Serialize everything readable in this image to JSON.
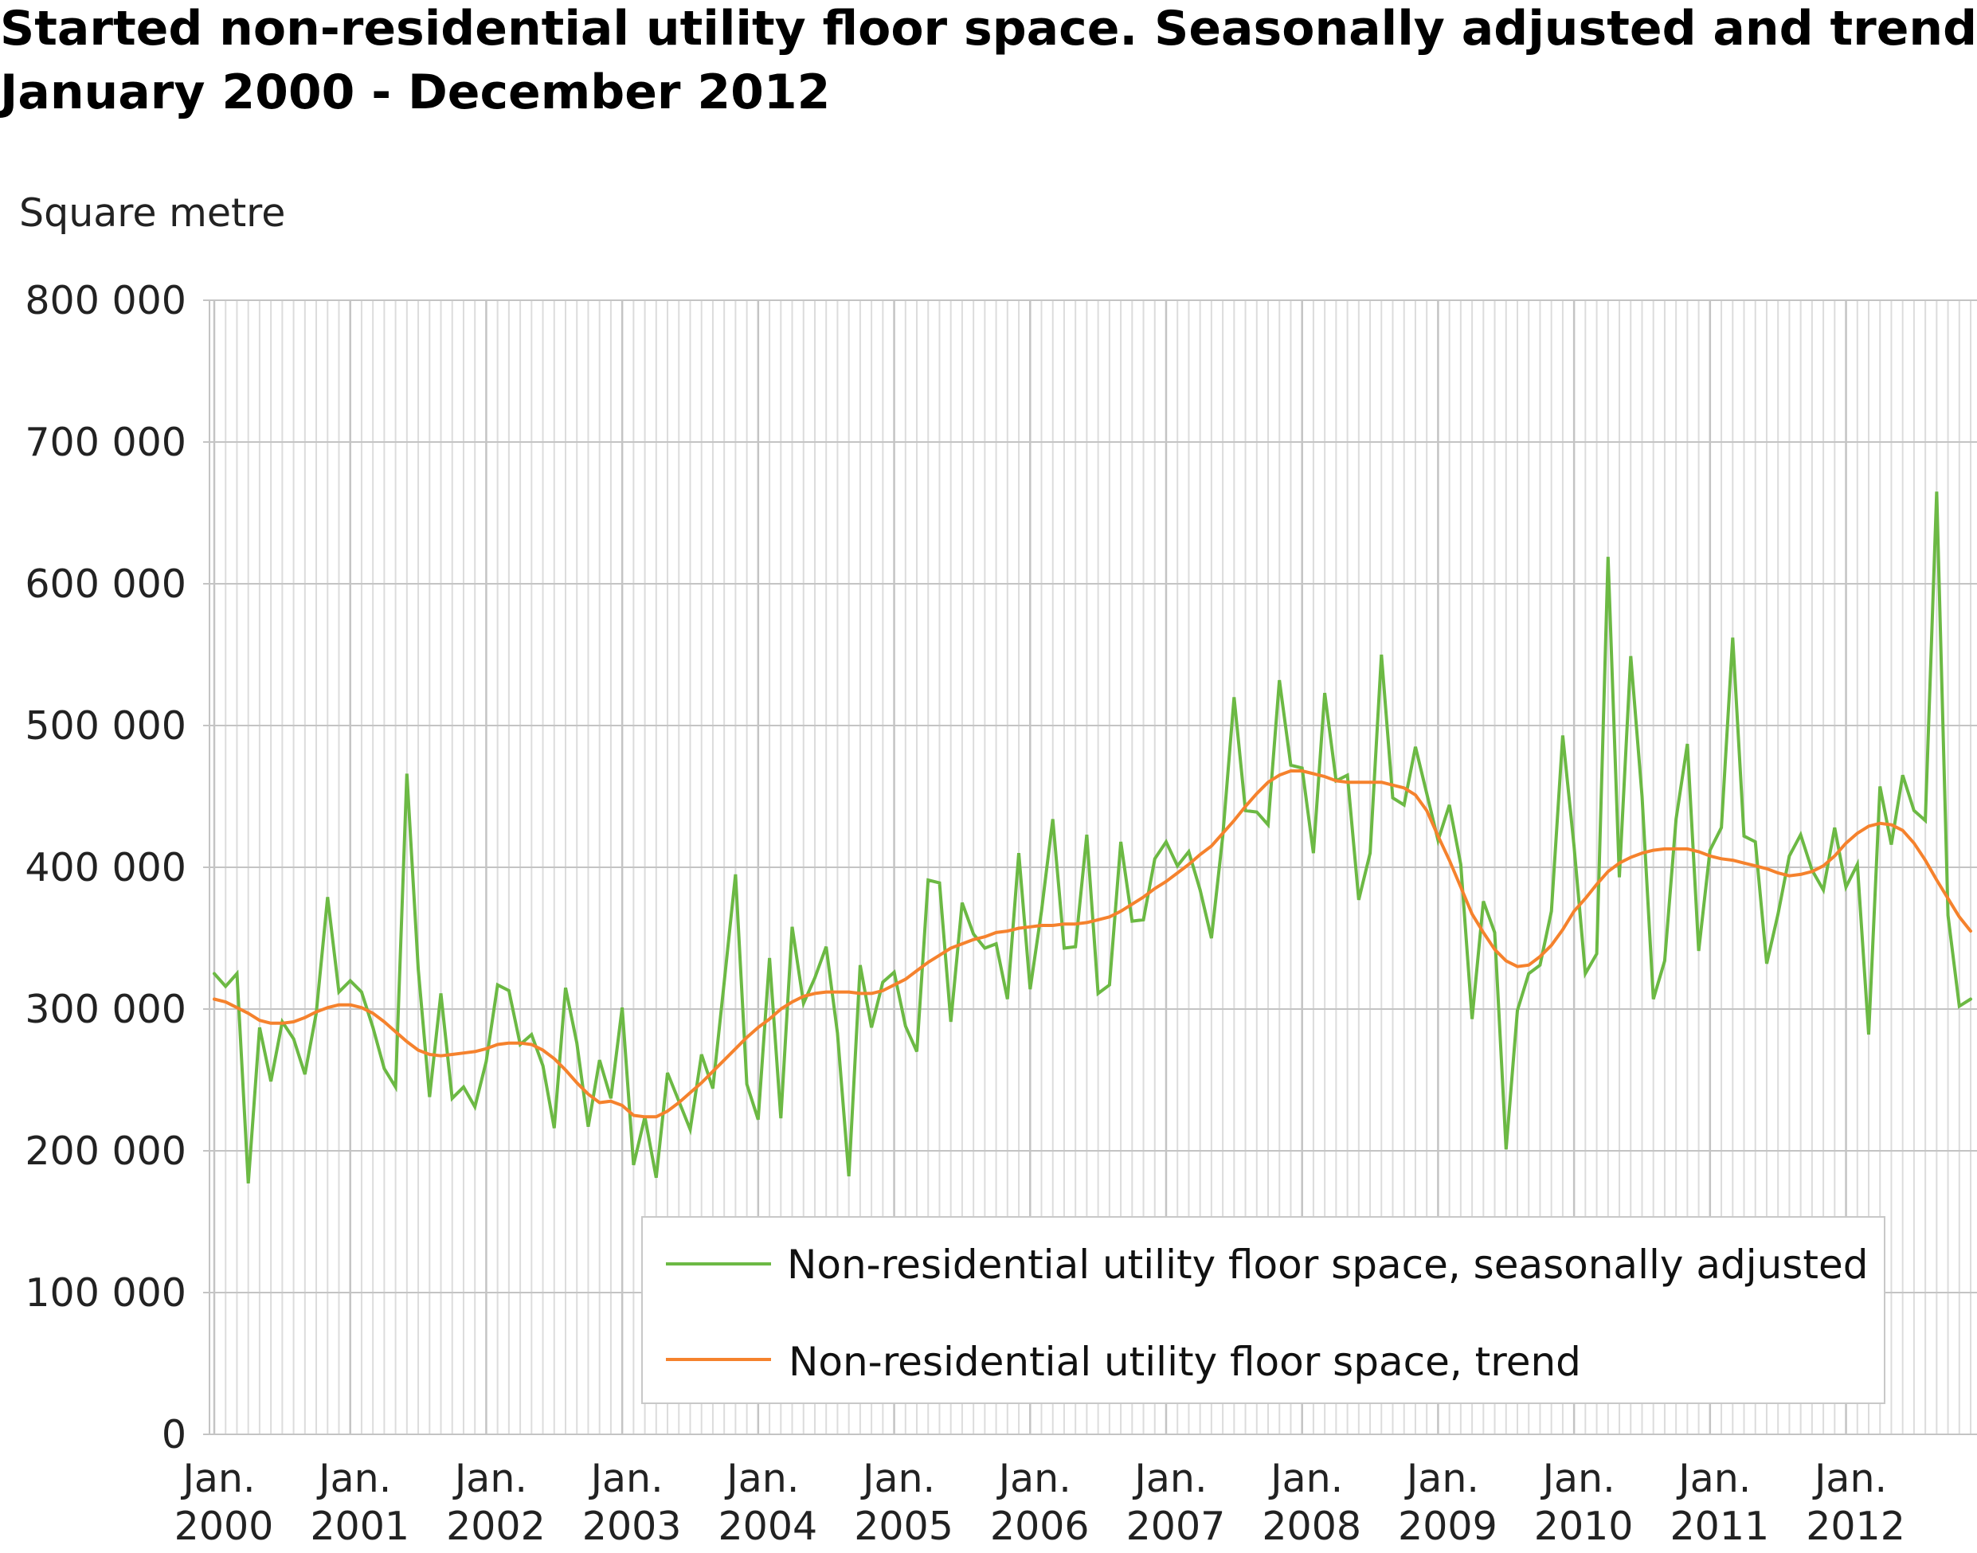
{
  "title_lines": [
    "Started non-residential utility floor space. Seasonally adjusted and trend.",
    "January 2000 - December 2012"
  ],
  "chart_data": {
    "type": "line",
    "title": "Started non-residential utility floor space. Seasonally adjusted and trend. January 2000 - December 2012",
    "ylabel": "Square metre",
    "xlabel": "",
    "ylim": [
      0,
      800000
    ],
    "yticks": [
      "0",
      "100 000",
      "200 000",
      "300 000",
      "400 000",
      "500 000",
      "600 000",
      "700 000",
      "800 000"
    ],
    "xticks": [
      [
        "Jan.",
        "2000"
      ],
      [
        "Jan.",
        "2001"
      ],
      [
        "Jan.",
        "2002"
      ],
      [
        "Jan.",
        "2003"
      ],
      [
        "Jan.",
        "2004"
      ],
      [
        "Jan.",
        "2005"
      ],
      [
        "Jan.",
        "2006"
      ],
      [
        "Jan.",
        "2007"
      ],
      [
        "Jan.",
        "2008"
      ],
      [
        "Jan.",
        "2009"
      ],
      [
        "Jan.",
        "2010"
      ],
      [
        "Jan.",
        "2011"
      ],
      [
        "Jan.",
        "2012"
      ]
    ],
    "x_start": "2000-01",
    "x_end": "2012-12",
    "frequency": "monthly",
    "grid": true,
    "legend_position": "bottom-right inside plot",
    "series": [
      {
        "name": "Non-residential utility floor space, seasonally adjusted",
        "color": "#6cb944",
        "values": [
          325000,
          316000,
          325000,
          177000,
          287000,
          249000,
          291000,
          279000,
          254000,
          297000,
          379000,
          312000,
          320000,
          312000,
          287000,
          258000,
          245000,
          466000,
          328000,
          238000,
          311000,
          237000,
          245000,
          231000,
          263000,
          317000,
          313000,
          275000,
          282000,
          260000,
          216000,
          315000,
          276000,
          217000,
          264000,
          237000,
          301000,
          190000,
          224000,
          181000,
          255000,
          235000,
          215000,
          268000,
          244000,
          319000,
          395000,
          247000,
          222000,
          336000,
          223000,
          358000,
          304000,
          322000,
          344000,
          283000,
          182000,
          331000,
          287000,
          319000,
          326000,
          288000,
          270000,
          391000,
          389000,
          291000,
          375000,
          353000,
          343000,
          346000,
          307000,
          410000,
          314000,
          369000,
          434000,
          343000,
          344000,
          423000,
          311000,
          317000,
          418000,
          362000,
          363000,
          406000,
          418000,
          401000,
          411000,
          384000,
          350000,
          422000,
          520000,
          440000,
          439000,
          430000,
          532000,
          472000,
          470000,
          410000,
          523000,
          461000,
          465000,
          377000,
          410000,
          550000,
          449000,
          444000,
          485000,
          452000,
          419000,
          444000,
          402000,
          293000,
          376000,
          354000,
          201000,
          299000,
          325000,
          331000,
          369000,
          493000,
          415000,
          325000,
          339000,
          619000,
          393000,
          549000,
          450000,
          307000,
          334000,
          434000,
          487000,
          341000,
          412000,
          428000,
          562000,
          422000,
          418000,
          332000,
          367000,
          408000,
          423000,
          398000,
          384000,
          428000,
          386000,
          402000,
          282000,
          457000,
          416000,
          465000,
          440000,
          433000,
          665000,
          366000,
          302000,
          307000
        ]
      },
      {
        "name": "Non-residential utility floor space, trend",
        "color": "#f5822d",
        "values": [
          307000,
          305000,
          301000,
          297000,
          292000,
          290000,
          290000,
          291000,
          294000,
          298000,
          301000,
          303000,
          303000,
          301000,
          297000,
          291000,
          284000,
          277000,
          271000,
          268000,
          267000,
          268000,
          269000,
          270000,
          272000,
          275000,
          276000,
          276000,
          275000,
          271000,
          265000,
          257000,
          248000,
          240000,
          234000,
          235000,
          232000,
          225000,
          224000,
          224000,
          228000,
          234000,
          241000,
          248000,
          256000,
          264000,
          272000,
          280000,
          287000,
          293000,
          300000,
          305000,
          309000,
          311000,
          312000,
          312000,
          312000,
          311000,
          311000,
          313000,
          317000,
          321000,
          327000,
          333000,
          338000,
          343000,
          346000,
          349000,
          351000,
          354000,
          355000,
          357000,
          358000,
          359000,
          359000,
          360000,
          360000,
          361000,
          363000,
          365000,
          369000,
          374000,
          379000,
          385000,
          390000,
          396000,
          402000,
          409000,
          415000,
          424000,
          433000,
          443000,
          452000,
          460000,
          465000,
          468000,
          468000,
          466000,
          464000,
          461000,
          460000,
          460000,
          460000,
          460000,
          458000,
          456000,
          451000,
          440000,
          422000,
          405000,
          386000,
          367000,
          354000,
          342000,
          334000,
          330000,
          331000,
          337000,
          345000,
          356000,
          369000,
          378000,
          388000,
          397000,
          403000,
          407000,
          410000,
          412000,
          413000,
          413000,
          413000,
          411000,
          408000,
          406000,
          405000,
          403000,
          401000,
          399000,
          396000,
          394000,
          395000,
          397000,
          401000,
          408000,
          417000,
          424000,
          429000,
          431000,
          430000,
          426000,
          417000,
          405000,
          391000,
          378000,
          365000,
          355000
        ]
      }
    ]
  },
  "colors": {
    "grid_minor": "#dcdcdc",
    "grid_major": "#c4c4c4",
    "legend_border": "#c8c8c8"
  }
}
